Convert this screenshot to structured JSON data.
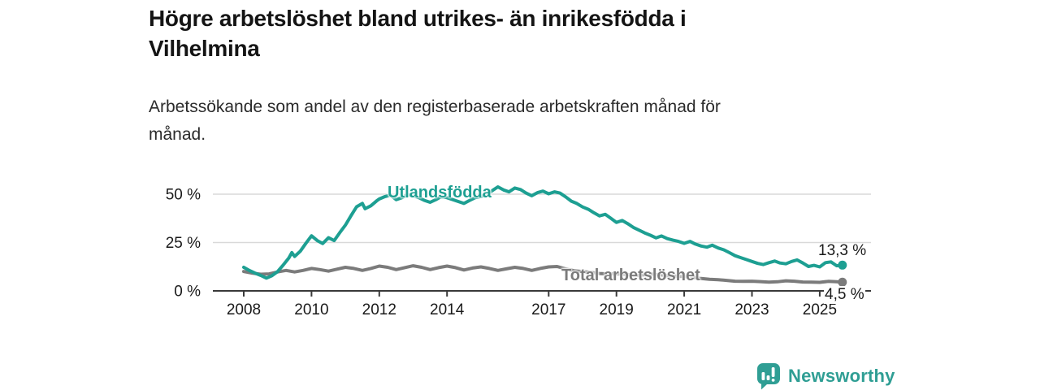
{
  "title": {
    "line1": "Högre arbetslöshet bland utrikes- än inrikesfödda i",
    "line2": "Vilhelmina"
  },
  "subtitle": {
    "line1": "Arbetssökande som andel av den registerbaserade arbetskraften månad för",
    "line2": "månad."
  },
  "chart_data": {
    "type": "line",
    "title": "Högre arbetslöshet bland utrikes- än inrikesfödda i Vilhelmina",
    "subtitle": "Arbetssökande som andel av den registerbaserade arbetskraften månad för månad.",
    "unit": "%",
    "grid": true,
    "legend_position": "inline-labels",
    "x_axis": {
      "range": [
        2007.1,
        2026.5
      ],
      "ticks": [
        {
          "value": 2008,
          "label": "2008"
        },
        {
          "value": 2010,
          "label": "2010"
        },
        {
          "value": 2012,
          "label": "2012"
        },
        {
          "value": 2014,
          "label": "2014"
        },
        {
          "value": 2017,
          "label": "2017"
        },
        {
          "value": 2019,
          "label": "2019"
        },
        {
          "value": 2021,
          "label": "2021"
        },
        {
          "value": 2023,
          "label": "2023"
        },
        {
          "value": 2025,
          "label": "2025"
        }
      ]
    },
    "y_axis": {
      "range": [
        0,
        58
      ],
      "ticks": [
        {
          "value": 0,
          "label": "0 %"
        },
        {
          "value": 25,
          "label": "25 %"
        },
        {
          "value": 50,
          "label": "50 %"
        }
      ]
    },
    "series": [
      {
        "id": "utlandsfodda",
        "name": "Utlandsfödda",
        "color": "#1d9f92",
        "end_label": "13,3 %",
        "end_value": 13.3,
        "points": [
          [
            2008,
            12.2
          ],
          [
            2008.17,
            10.5
          ],
          [
            2008.33,
            9.2
          ],
          [
            2008.5,
            8
          ],
          [
            2008.67,
            6.6
          ],
          [
            2008.83,
            7.8
          ],
          [
            2009,
            10
          ],
          [
            2009.17,
            13.5
          ],
          [
            2009.33,
            17
          ],
          [
            2009.42,
            19.8
          ],
          [
            2009.5,
            17.8
          ],
          [
            2009.67,
            20.5
          ],
          [
            2009.83,
            24.5
          ],
          [
            2010,
            28.5
          ],
          [
            2010.17,
            26
          ],
          [
            2010.33,
            24.5
          ],
          [
            2010.5,
            27.5
          ],
          [
            2010.67,
            26
          ],
          [
            2010.83,
            30
          ],
          [
            2011,
            34
          ],
          [
            2011.17,
            39
          ],
          [
            2011.33,
            43.5
          ],
          [
            2011.5,
            45.2
          ],
          [
            2011.58,
            42.5
          ],
          [
            2011.75,
            44
          ],
          [
            2011.92,
            46.5
          ],
          [
            2012,
            47.5
          ],
          [
            2012.17,
            48.8
          ],
          [
            2012.33,
            49.5
          ],
          [
            2012.5,
            47.2
          ],
          [
            2012.67,
            48.2
          ],
          [
            2012.83,
            49.8
          ],
          [
            2013,
            49.2
          ],
          [
            2013.17,
            48.2
          ],
          [
            2013.33,
            46.8
          ],
          [
            2013.5,
            45.8
          ],
          [
            2013.67,
            47.2
          ],
          [
            2013.83,
            48.8
          ],
          [
            2014,
            48.2
          ],
          [
            2014.17,
            47.2
          ],
          [
            2014.33,
            46.2
          ],
          [
            2014.5,
            45.2
          ],
          [
            2014.67,
            46.8
          ],
          [
            2014.83,
            48.2
          ],
          [
            2015,
            48.8
          ],
          [
            2015.17,
            49.8
          ],
          [
            2015.33,
            51.8
          ],
          [
            2015.5,
            53.8
          ],
          [
            2015.67,
            52.2
          ],
          [
            2015.83,
            51.2
          ],
          [
            2016,
            53.2
          ],
          [
            2016.17,
            52.4
          ],
          [
            2016.33,
            50.6
          ],
          [
            2016.5,
            49.2
          ],
          [
            2016.67,
            50.8
          ],
          [
            2016.83,
            51.6
          ],
          [
            2017,
            50.2
          ],
          [
            2017.17,
            51.2
          ],
          [
            2017.33,
            50.6
          ],
          [
            2017.5,
            48.6
          ],
          [
            2017.67,
            46.4
          ],
          [
            2017.83,
            45.2
          ],
          [
            2018,
            43.4
          ],
          [
            2018.17,
            42.2
          ],
          [
            2018.33,
            40.4
          ],
          [
            2018.5,
            38.8
          ],
          [
            2018.67,
            39.6
          ],
          [
            2018.83,
            37.6
          ],
          [
            2019,
            35.4
          ],
          [
            2019.17,
            36.4
          ],
          [
            2019.33,
            34.8
          ],
          [
            2019.5,
            32.8
          ],
          [
            2019.67,
            31.4
          ],
          [
            2019.83,
            30
          ],
          [
            2020,
            28.8
          ],
          [
            2020.17,
            27.4
          ],
          [
            2020.33,
            28.4
          ],
          [
            2020.5,
            27
          ],
          [
            2020.67,
            26.2
          ],
          [
            2020.83,
            25.6
          ],
          [
            2021,
            24.6
          ],
          [
            2021.17,
            25.6
          ],
          [
            2021.33,
            24.2
          ],
          [
            2021.5,
            23.2
          ],
          [
            2021.67,
            22.6
          ],
          [
            2021.83,
            23.6
          ],
          [
            2022,
            22.2
          ],
          [
            2022.17,
            21.2
          ],
          [
            2022.33,
            19.8
          ],
          [
            2022.5,
            18.2
          ],
          [
            2022.67,
            17.2
          ],
          [
            2022.83,
            16.2
          ],
          [
            2023,
            15.2
          ],
          [
            2023.17,
            14.2
          ],
          [
            2023.33,
            13.6
          ],
          [
            2023.5,
            14.6
          ],
          [
            2023.67,
            15.4
          ],
          [
            2023.83,
            14.4
          ],
          [
            2024,
            14
          ],
          [
            2024.17,
            15.2
          ],
          [
            2024.33,
            16
          ],
          [
            2024.5,
            14.4
          ],
          [
            2024.67,
            12.6
          ],
          [
            2024.83,
            13.2
          ],
          [
            2025,
            12.4
          ],
          [
            2025.17,
            14.6
          ],
          [
            2025.33,
            15
          ],
          [
            2025.5,
            13
          ],
          [
            2025.67,
            13.3
          ]
        ]
      },
      {
        "id": "total",
        "name": "Total arbetslöshet",
        "color": "#7b7b7b",
        "end_label": "4,5 %",
        "end_value": 4.5,
        "points": [
          [
            2008,
            10
          ],
          [
            2008.25,
            9.2
          ],
          [
            2008.5,
            8.6
          ],
          [
            2008.75,
            8.8
          ],
          [
            2009,
            9.8
          ],
          [
            2009.25,
            10.6
          ],
          [
            2009.5,
            9.8
          ],
          [
            2009.75,
            10.6
          ],
          [
            2010,
            11.6
          ],
          [
            2010.25,
            11
          ],
          [
            2010.5,
            10.2
          ],
          [
            2010.75,
            11.2
          ],
          [
            2011,
            12.2
          ],
          [
            2011.25,
            11.6
          ],
          [
            2011.5,
            10.6
          ],
          [
            2011.75,
            11.6
          ],
          [
            2012,
            12.8
          ],
          [
            2012.25,
            12.2
          ],
          [
            2012.5,
            11
          ],
          [
            2012.75,
            12
          ],
          [
            2013,
            13
          ],
          [
            2013.25,
            12.2
          ],
          [
            2013.5,
            11
          ],
          [
            2013.75,
            12
          ],
          [
            2014,
            12.8
          ],
          [
            2014.25,
            12
          ],
          [
            2014.5,
            10.8
          ],
          [
            2014.75,
            11.8
          ],
          [
            2015,
            12.4
          ],
          [
            2015.25,
            11.6
          ],
          [
            2015.5,
            10.6
          ],
          [
            2015.75,
            11.4
          ],
          [
            2016,
            12.2
          ],
          [
            2016.25,
            11.6
          ],
          [
            2016.5,
            10.6
          ],
          [
            2016.75,
            11.6
          ],
          [
            2017,
            12.4
          ],
          [
            2017.25,
            12.6
          ],
          [
            2017.5,
            11.4
          ],
          [
            2017.75,
            10.4
          ],
          [
            2018,
            10
          ],
          [
            2018.25,
            9.6
          ],
          [
            2018.5,
            9
          ],
          [
            2018.75,
            8.8
          ],
          [
            2019,
            8.8
          ],
          [
            2019.25,
            8.6
          ],
          [
            2019.5,
            8
          ],
          [
            2019.75,
            8.2
          ],
          [
            2020,
            8.8
          ],
          [
            2020.25,
            8.4
          ],
          [
            2020.5,
            7.8
          ],
          [
            2020.75,
            7.6
          ],
          [
            2021,
            7.4
          ],
          [
            2021.25,
            7
          ],
          [
            2021.5,
            6.4
          ],
          [
            2021.75,
            6
          ],
          [
            2022,
            5.8
          ],
          [
            2022.25,
            5.4
          ],
          [
            2022.5,
            5
          ],
          [
            2022.75,
            4.9
          ],
          [
            2023,
            5
          ],
          [
            2023.25,
            4.8
          ],
          [
            2023.5,
            4.5
          ],
          [
            2023.75,
            4.7
          ],
          [
            2024,
            5.2
          ],
          [
            2024.25,
            5
          ],
          [
            2024.5,
            4.6
          ],
          [
            2024.75,
            4.5
          ],
          [
            2025,
            4.4
          ],
          [
            2025.25,
            4.9
          ],
          [
            2025.5,
            4.7
          ],
          [
            2025.67,
            4.5
          ]
        ]
      }
    ]
  },
  "branding": {
    "logo_text": "Newsworthy",
    "logo_icon": "bar-chart-pin-icon",
    "accent_color": "#2f9e94"
  }
}
